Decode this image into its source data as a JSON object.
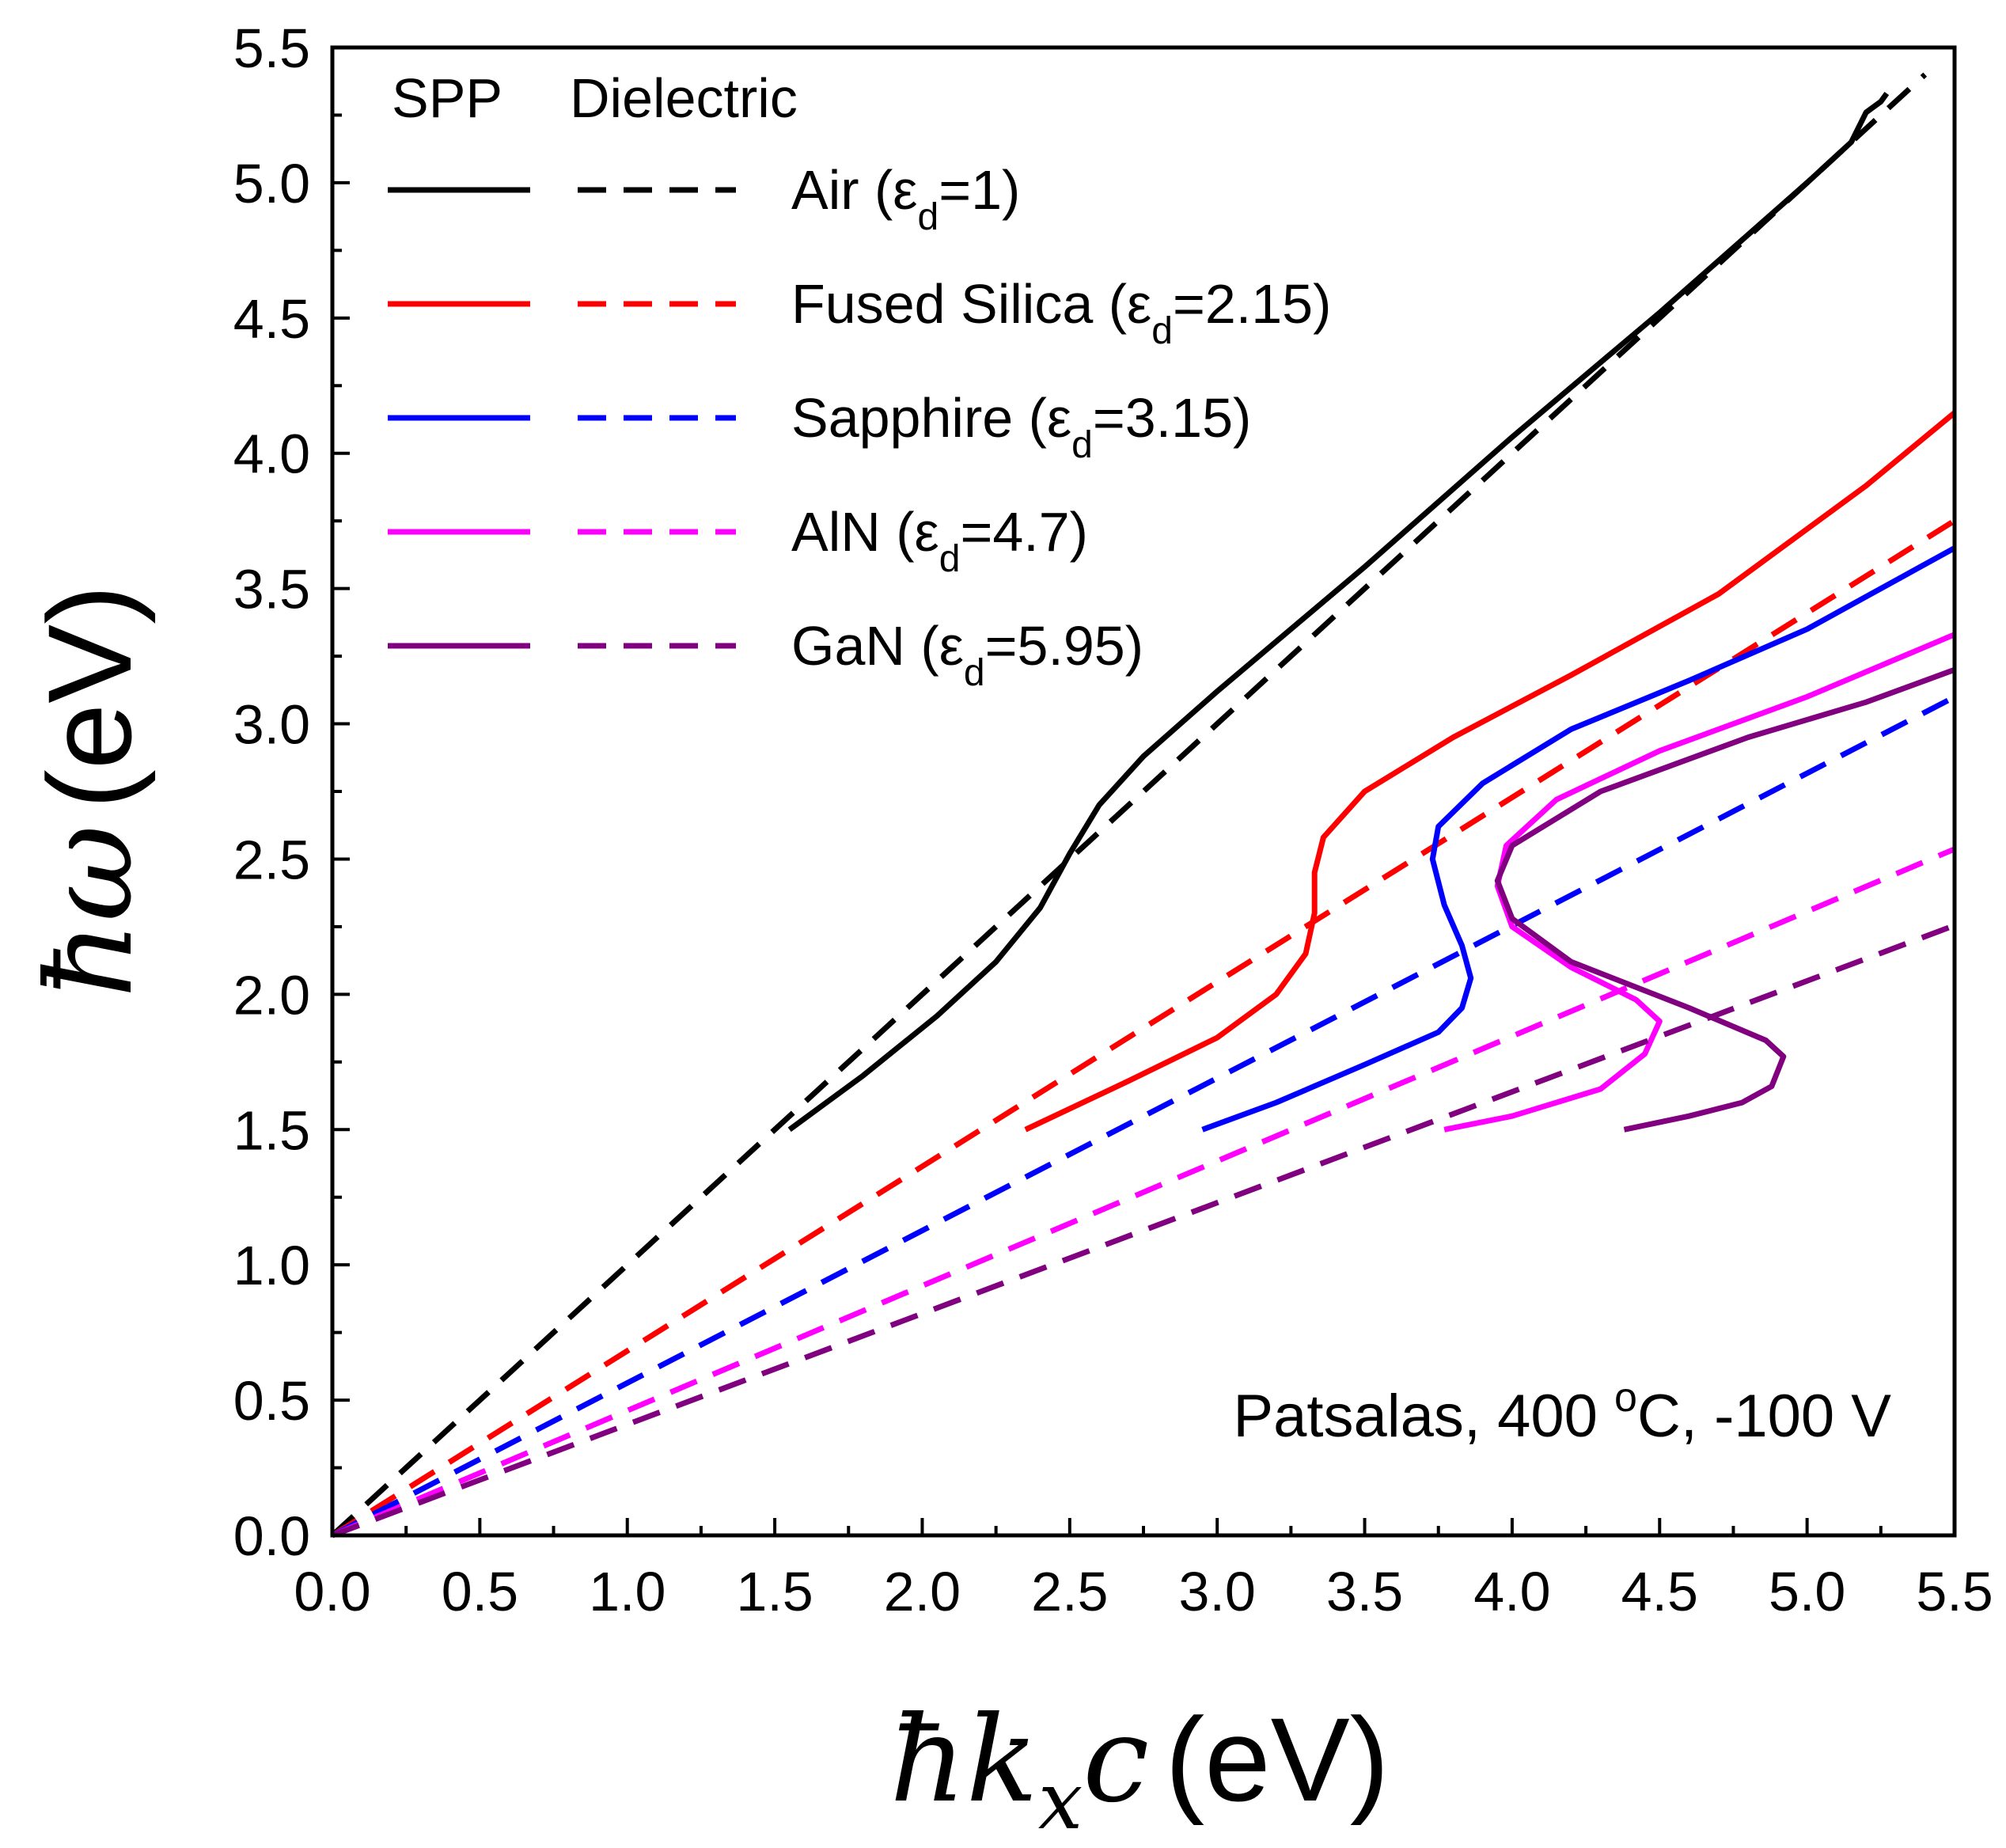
{
  "chart_data": {
    "type": "line",
    "title": "",
    "xlabel": {
      "hbar": "ħ",
      "k": "k",
      "sub": "x",
      "c": "c",
      "unit": "(eV)"
    },
    "ylabel": {
      "hbar": "ħ",
      "omega": "ω",
      "unit": "(eV)"
    },
    "xlim": [
      0.0,
      5.5
    ],
    "ylim": [
      0.0,
      5.5
    ],
    "xticks": [
      "0.0",
      "0.5",
      "1.0",
      "1.5",
      "2.0",
      "2.5",
      "3.0",
      "3.5",
      "4.0",
      "4.5",
      "5.0",
      "5.5"
    ],
    "yticks": [
      "0.0",
      "0.5",
      "1.0",
      "1.5",
      "2.0",
      "2.5",
      "3.0",
      "3.5",
      "4.0",
      "4.5",
      "5.0",
      "5.5"
    ],
    "legend": {
      "position": "top-left",
      "header_spp": "SPP",
      "header_dielectric": "Dielectric",
      "entries": [
        {
          "name": "Air",
          "pre": "Air (ε",
          "sub": "d",
          "post": "=1)",
          "color": "#000000"
        },
        {
          "name": "Fused Silica",
          "pre": "Fused Silica (ε",
          "sub": "d",
          "post": "=2.15)",
          "color": "#ff0000"
        },
        {
          "name": "Sapphire",
          "pre": "Sapphire (ε",
          "sub": "d",
          "post": "=3.15)",
          "color": "#0000ff"
        },
        {
          "name": "AlN",
          "pre": "AlN (ε",
          "sub": "d",
          "post": "=4.7)",
          "color": "#ff00ff"
        },
        {
          "name": "GaN",
          "pre": "GaN (ε",
          "sub": "d",
          "post": "=5.95)",
          "color": "#800080"
        }
      ]
    },
    "annotation": {
      "pre": "Patsalas, 400 ",
      "sup": "o",
      "post": "C, -100 V",
      "position": "bottom-right"
    },
    "series": [
      {
        "name": "Air SPP",
        "style": "solid",
        "color": "#000000",
        "points": [
          [
            1.55,
            1.5
          ],
          [
            1.8,
            1.7
          ],
          [
            2.05,
            1.92
          ],
          [
            2.25,
            2.12
          ],
          [
            2.4,
            2.32
          ],
          [
            2.5,
            2.52
          ],
          [
            2.6,
            2.7
          ],
          [
            2.75,
            2.88
          ],
          [
            3.0,
            3.12
          ],
          [
            3.5,
            3.58
          ],
          [
            4.0,
            4.06
          ],
          [
            4.5,
            4.52
          ],
          [
            5.0,
            5.0
          ],
          [
            5.15,
            5.15
          ],
          [
            5.2,
            5.26
          ],
          [
            5.25,
            5.3
          ],
          [
            5.27,
            5.33
          ]
        ]
      },
      {
        "name": "Air light line",
        "style": "dashed",
        "color": "#000000",
        "x_range": [
          0.0,
          5.4
        ],
        "epsilon_d": 1
      },
      {
        "name": "Fused Silica SPP",
        "style": "solid",
        "color": "#ff0000",
        "points": [
          [
            2.35,
            1.5
          ],
          [
            2.7,
            1.68
          ],
          [
            3.0,
            1.84
          ],
          [
            3.2,
            2.0
          ],
          [
            3.3,
            2.15
          ],
          [
            3.33,
            2.3
          ],
          [
            3.33,
            2.45
          ],
          [
            3.36,
            2.58
          ],
          [
            3.5,
            2.75
          ],
          [
            3.8,
            2.95
          ],
          [
            4.2,
            3.18
          ],
          [
            4.7,
            3.48
          ],
          [
            5.2,
            3.88
          ],
          [
            5.5,
            4.15
          ]
        ]
      },
      {
        "name": "Fused Silica light line",
        "style": "dashed",
        "color": "#ff0000",
        "x_range": [
          0.0,
          5.5
        ],
        "epsilon_d": 2.15
      },
      {
        "name": "Sapphire SPP",
        "style": "solid",
        "color": "#0000ff",
        "points": [
          [
            2.95,
            1.5
          ],
          [
            3.2,
            1.6
          ],
          [
            3.5,
            1.74
          ],
          [
            3.75,
            1.86
          ],
          [
            3.83,
            1.95
          ],
          [
            3.86,
            2.06
          ],
          [
            3.83,
            2.18
          ],
          [
            3.77,
            2.33
          ],
          [
            3.73,
            2.5
          ],
          [
            3.75,
            2.62
          ],
          [
            3.9,
            2.78
          ],
          [
            4.2,
            2.98
          ],
          [
            4.6,
            3.16
          ],
          [
            5.0,
            3.35
          ],
          [
            5.5,
            3.65
          ]
        ]
      },
      {
        "name": "Sapphire light line",
        "style": "dashed",
        "color": "#0000ff",
        "x_range": [
          0.0,
          5.5
        ],
        "epsilon_d": 3.15
      },
      {
        "name": "AlN SPP",
        "style": "solid",
        "color": "#ff00ff",
        "points": [
          [
            3.77,
            1.5
          ],
          [
            4.0,
            1.55
          ],
          [
            4.3,
            1.65
          ],
          [
            4.45,
            1.78
          ],
          [
            4.5,
            1.9
          ],
          [
            4.42,
            1.98
          ],
          [
            4.2,
            2.1
          ],
          [
            4.0,
            2.25
          ],
          [
            3.95,
            2.4
          ],
          [
            3.98,
            2.55
          ],
          [
            4.15,
            2.72
          ],
          [
            4.5,
            2.9
          ],
          [
            5.0,
            3.1
          ],
          [
            5.5,
            3.33
          ]
        ]
      },
      {
        "name": "AlN light line",
        "style": "dashed",
        "color": "#ff00ff",
        "x_range": [
          0.0,
          5.5
        ],
        "epsilon_d": 4.7
      },
      {
        "name": "GaN SPP",
        "style": "solid",
        "color": "#800080",
        "points": [
          [
            4.38,
            1.5
          ],
          [
            4.6,
            1.55
          ],
          [
            4.78,
            1.6
          ],
          [
            4.88,
            1.66
          ],
          [
            4.92,
            1.77
          ],
          [
            4.86,
            1.83
          ],
          [
            4.6,
            1.95
          ],
          [
            4.2,
            2.12
          ],
          [
            4.0,
            2.28
          ],
          [
            3.95,
            2.42
          ],
          [
            4.0,
            2.55
          ],
          [
            4.3,
            2.75
          ],
          [
            4.8,
            2.95
          ],
          [
            5.2,
            3.08
          ],
          [
            5.5,
            3.2
          ]
        ]
      },
      {
        "name": "GaN light line",
        "style": "dashed",
        "color": "#800080",
        "x_range": [
          0.0,
          5.5
        ],
        "epsilon_d": 5.95
      }
    ]
  }
}
